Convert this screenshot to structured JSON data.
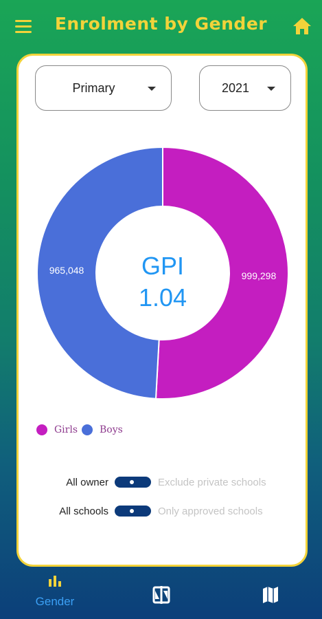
{
  "header": {
    "title": "Enrolment by Gender",
    "accent_color": "#f2d33a",
    "menu_icon": "hamburger-menu-icon",
    "home_icon": "home-icon"
  },
  "filters": {
    "level": {
      "selected": "Primary"
    },
    "year": {
      "selected": "2021"
    }
  },
  "chart_data": {
    "type": "pie",
    "categories": [
      "Girls",
      "Boys"
    ],
    "values": [
      999298,
      965048
    ],
    "value_labels": [
      "999,298",
      "965,048"
    ],
    "colors": [
      "#c41ec0",
      "#4a6fd9"
    ],
    "center_label": "GPI",
    "center_value": "1.04",
    "legend_position": "bottom-left"
  },
  "legend": {
    "items": [
      {
        "label": "Girls",
        "color": "#c41ec0"
      },
      {
        "label": "Boys",
        "color": "#4a6fd9"
      }
    ]
  },
  "toggles": [
    {
      "left_label": "All owner",
      "right_label": "Exclude private schools"
    },
    {
      "left_label": "All schools",
      "right_label": "Only approved schools"
    }
  ],
  "bottom_nav": {
    "items": [
      {
        "label": "Gender",
        "icon": "bar-chart-icon",
        "active": true
      },
      {
        "label": "",
        "icon": "compare-icon",
        "active": false
      },
      {
        "label": "",
        "icon": "map-icon",
        "active": false
      }
    ]
  }
}
